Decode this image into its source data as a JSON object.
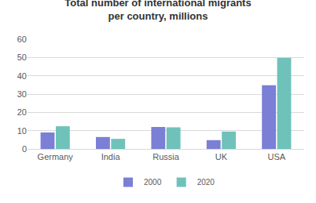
{
  "chart_data": {
    "type": "bar",
    "title": "Total number of international migrants per country, millions",
    "categories": [
      "Germany",
      "India",
      "Russia",
      "UK",
      "USA"
    ],
    "series": [
      {
        "name": "2000",
        "color": "#7b7fd6",
        "values": [
          9,
          6.5,
          12,
          4.8,
          34.8
        ]
      },
      {
        "name": "2020",
        "color": "#6fc2ba",
        "values": [
          12.4,
          5.5,
          11.8,
          9.5,
          49.8
        ]
      }
    ],
    "ylim": [
      0,
      60
    ],
    "yticks": [
      0,
      10,
      20,
      30,
      40,
      50,
      60
    ],
    "grid": true,
    "legend": "bottom"
  }
}
